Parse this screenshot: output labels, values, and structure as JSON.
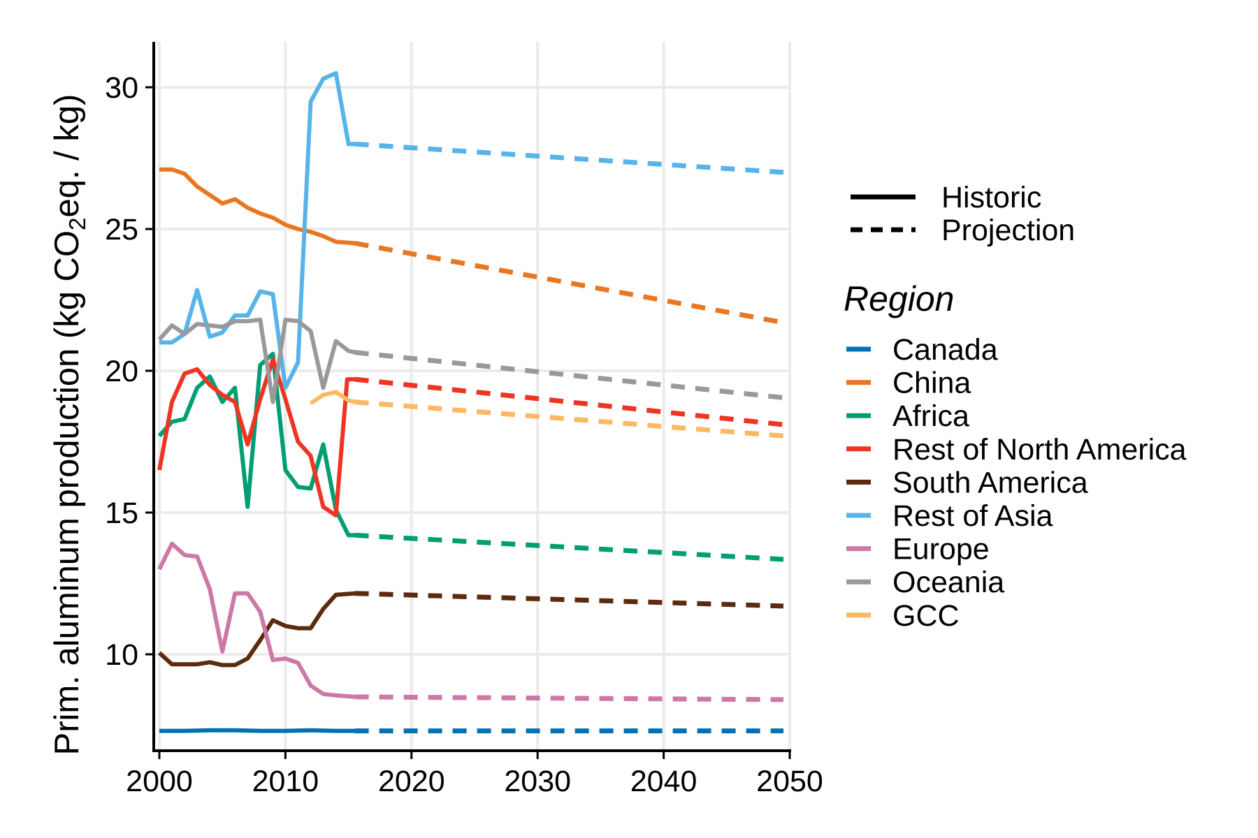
{
  "chart_data": {
    "type": "line",
    "ylabel": {
      "prefix": "Prim. aluminum production (kg CO",
      "sub": "2",
      "suffix": "eq. / kg)"
    },
    "xlabel": "",
    "xlim": [
      2000,
      2050
    ],
    "ylim": [
      6.6,
      31.6
    ],
    "x_ticks": [
      "2000",
      "2010",
      "2020",
      "2030",
      "2040",
      "2050"
    ],
    "y_ticks": [
      "10",
      "15",
      "20",
      "25",
      "30"
    ],
    "grid": true,
    "legend_position": "right",
    "linetype_legend": [
      {
        "label": "Historic",
        "style": "solid"
      },
      {
        "label": "Projection",
        "style": "dashed"
      }
    ],
    "legend_title": "Region",
    "series": [
      {
        "name": "Canada",
        "color": "#0072B2",
        "historic": [
          [
            2000,
            7.3
          ],
          [
            2002,
            7.3
          ],
          [
            2004,
            7.32
          ],
          [
            2006,
            7.32
          ],
          [
            2008,
            7.3
          ],
          [
            2010,
            7.3
          ],
          [
            2012,
            7.32
          ],
          [
            2014,
            7.3
          ],
          [
            2015.5,
            7.3
          ]
        ],
        "projection": [
          [
            2015.5,
            7.3
          ],
          [
            2049.5,
            7.3
          ]
        ]
      },
      {
        "name": "China",
        "color": "#E87722",
        "historic": [
          [
            2000,
            27.1
          ],
          [
            2001,
            27.1
          ],
          [
            2002,
            26.95
          ],
          [
            2003,
            26.5
          ],
          [
            2004,
            26.2
          ],
          [
            2005,
            25.9
          ],
          [
            2006,
            26.05
          ],
          [
            2007,
            25.75
          ],
          [
            2008,
            25.55
          ],
          [
            2009,
            25.4
          ],
          [
            2010,
            25.15
          ],
          [
            2011,
            25.0
          ],
          [
            2012,
            24.9
          ],
          [
            2013,
            24.75
          ],
          [
            2014,
            24.55
          ],
          [
            2015.5,
            24.5
          ]
        ],
        "projection": [
          [
            2015.5,
            24.5
          ],
          [
            2049.5,
            21.7
          ]
        ]
      },
      {
        "name": "Africa",
        "color": "#009E73",
        "historic": [
          [
            2000,
            17.7
          ],
          [
            2001,
            18.2
          ],
          [
            2002,
            18.3
          ],
          [
            2003,
            19.4
          ],
          [
            2004,
            19.8
          ],
          [
            2005,
            18.9
          ],
          [
            2006,
            19.4
          ],
          [
            2007,
            15.2
          ],
          [
            2008,
            20.2
          ],
          [
            2009,
            20.6
          ],
          [
            2010,
            16.5
          ],
          [
            2011,
            15.9
          ],
          [
            2012,
            15.85
          ],
          [
            2013,
            17.4
          ],
          [
            2014,
            15.1
          ],
          [
            2015,
            14.2
          ],
          [
            2015.5,
            14.2
          ]
        ],
        "projection": [
          [
            2015.5,
            14.2
          ],
          [
            2049.5,
            13.35
          ]
        ]
      },
      {
        "name": "Rest of North America",
        "color": "#EE3524",
        "historic": [
          [
            2000,
            16.5
          ],
          [
            2001,
            18.9
          ],
          [
            2002,
            19.9
          ],
          [
            2003,
            20.05
          ],
          [
            2004,
            19.5
          ],
          [
            2005,
            19.15
          ],
          [
            2006,
            18.9
          ],
          [
            2007,
            17.4
          ],
          [
            2008,
            19.0
          ],
          [
            2009,
            20.4
          ],
          [
            2010,
            19.0
          ],
          [
            2011,
            17.5
          ],
          [
            2012,
            17.0
          ],
          [
            2013,
            15.2
          ],
          [
            2014,
            14.9
          ],
          [
            2014.9,
            19.7
          ],
          [
            2015.5,
            19.7
          ]
        ],
        "projection": [
          [
            2015.5,
            19.7
          ],
          [
            2049.5,
            18.1
          ]
        ]
      },
      {
        "name": "South America",
        "color": "#5C2A0E",
        "historic": [
          [
            2000,
            10.05
          ],
          [
            2001,
            9.65
          ],
          [
            2002,
            9.65
          ],
          [
            2003,
            9.65
          ],
          [
            2004,
            9.72
          ],
          [
            2005,
            9.62
          ],
          [
            2006,
            9.62
          ],
          [
            2007,
            9.85
          ],
          [
            2008,
            10.5
          ],
          [
            2009,
            11.2
          ],
          [
            2010,
            11.0
          ],
          [
            2011,
            10.92
          ],
          [
            2012,
            10.92
          ],
          [
            2013,
            11.6
          ],
          [
            2014,
            12.1
          ],
          [
            2015.5,
            12.15
          ]
        ],
        "projection": [
          [
            2015.5,
            12.15
          ],
          [
            2049.5,
            11.7
          ]
        ]
      },
      {
        "name": "Rest of Asia",
        "color": "#56B4E9",
        "historic": [
          [
            2000,
            21.0
          ],
          [
            2001,
            21.0
          ],
          [
            2002,
            21.3
          ],
          [
            2003,
            22.85
          ],
          [
            2004,
            21.2
          ],
          [
            2005,
            21.35
          ],
          [
            2006,
            21.95
          ],
          [
            2007,
            21.95
          ],
          [
            2008,
            22.8
          ],
          [
            2009,
            22.7
          ],
          [
            2010,
            19.4
          ],
          [
            2011,
            20.3
          ],
          [
            2012,
            29.5
          ],
          [
            2013,
            30.3
          ],
          [
            2014,
            30.5
          ],
          [
            2015,
            28.0
          ],
          [
            2015.5,
            28.0
          ]
        ],
        "projection": [
          [
            2015.5,
            28.0
          ],
          [
            2049.5,
            27.0
          ]
        ]
      },
      {
        "name": "Europe",
        "color": "#CC79A7",
        "historic": [
          [
            2000,
            13.0
          ],
          [
            2001,
            13.9
          ],
          [
            2002,
            13.5
          ],
          [
            2003,
            13.45
          ],
          [
            2004,
            12.3
          ],
          [
            2005,
            10.1
          ],
          [
            2006,
            12.15
          ],
          [
            2007,
            12.15
          ],
          [
            2008,
            11.5
          ],
          [
            2009,
            9.8
          ],
          [
            2010,
            9.85
          ],
          [
            2011,
            9.7
          ],
          [
            2012,
            8.9
          ],
          [
            2013,
            8.6
          ],
          [
            2014,
            8.55
          ],
          [
            2015.5,
            8.5
          ]
        ],
        "projection": [
          [
            2015.5,
            8.5
          ],
          [
            2049.5,
            8.4
          ]
        ]
      },
      {
        "name": "Oceania",
        "color": "#999999",
        "historic": [
          [
            2000,
            21.1
          ],
          [
            2001,
            21.6
          ],
          [
            2002,
            21.3
          ],
          [
            2003,
            21.65
          ],
          [
            2004,
            21.6
          ],
          [
            2005,
            21.55
          ],
          [
            2006,
            21.75
          ],
          [
            2007,
            21.75
          ],
          [
            2008,
            21.8
          ],
          [
            2009,
            18.9
          ],
          [
            2010,
            21.8
          ],
          [
            2011,
            21.75
          ],
          [
            2012,
            21.4
          ],
          [
            2013,
            19.4
          ],
          [
            2014,
            21.05
          ],
          [
            2015,
            20.7
          ],
          [
            2015.5,
            20.65
          ]
        ],
        "projection": [
          [
            2015.5,
            20.65
          ],
          [
            2049.5,
            19.05
          ]
        ]
      },
      {
        "name": "GCC",
        "color": "#FDB863",
        "historic": [
          [
            2012,
            18.85
          ],
          [
            2013,
            19.15
          ],
          [
            2014,
            19.25
          ],
          [
            2015,
            18.95
          ],
          [
            2015.5,
            18.9
          ]
        ],
        "projection": [
          [
            2015.5,
            18.9
          ],
          [
            2049.5,
            17.7
          ]
        ]
      }
    ]
  }
}
